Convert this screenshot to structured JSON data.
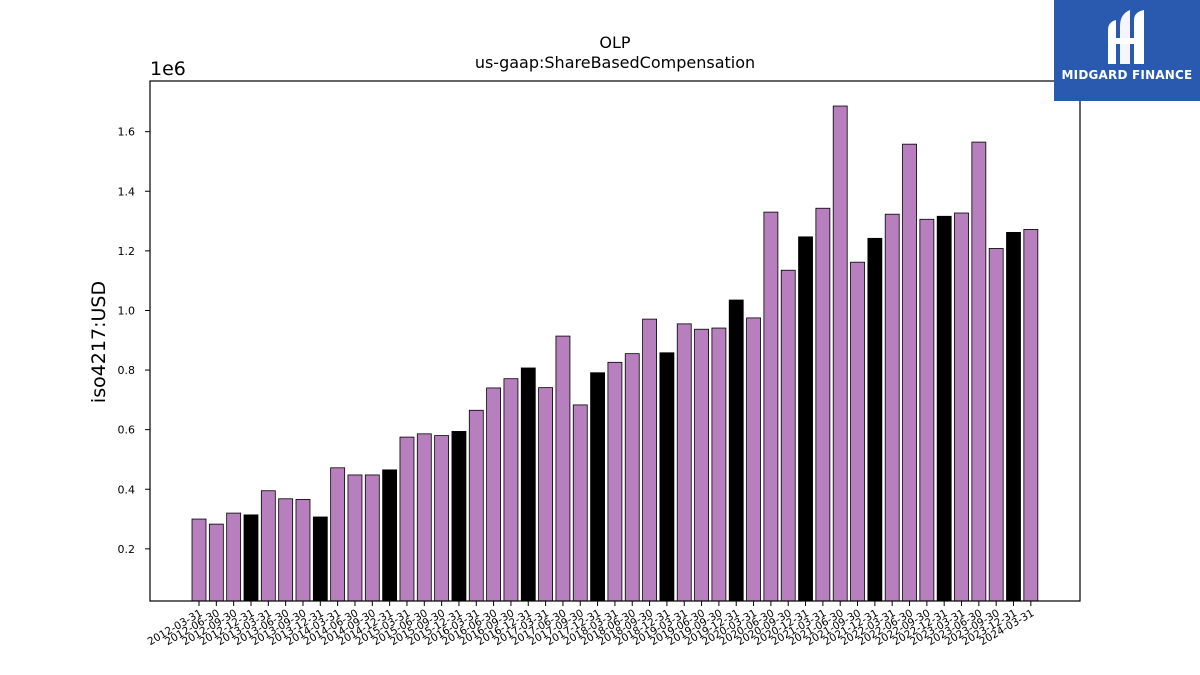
{
  "brand": {
    "name": "MIDGARD FINANCE",
    "icon": "midgard-m-logo-icon",
    "bg_color": "#2a5ab0"
  },
  "chart_data": {
    "type": "bar",
    "title": "OLP",
    "subtitle": "us-gaap:ShareBasedCompensation",
    "ylabel": "iso4217:USD",
    "xlabel": "",
    "y_scale_label": "1e6",
    "ylim": [
      25000,
      1770000
    ],
    "yticks": [
      0.2,
      0.4,
      0.6,
      0.8,
      1.0,
      1.2,
      1.4,
      1.6
    ],
    "grid": false,
    "colors": {
      "quarter": "#b77fbd",
      "year_end": "#000000"
    },
    "categories": [
      "2012-03-31",
      "2012-06-30",
      "2012-09-30",
      "2012-12-31",
      "2013-03-31",
      "2013-06-30",
      "2013-09-30",
      "2013-12-31",
      "2014-03-31",
      "2014-06-30",
      "2014-09-30",
      "2014-12-31",
      "2015-03-31",
      "2015-06-30",
      "2015-09-30",
      "2015-12-31",
      "2016-03-31",
      "2016-06-30",
      "2016-09-30",
      "2016-12-31",
      "2017-03-31",
      "2017-06-30",
      "2017-09-30",
      "2017-12-31",
      "2018-03-31",
      "2018-06-30",
      "2018-09-30",
      "2018-12-31",
      "2019-03-31",
      "2019-06-30",
      "2019-09-30",
      "2019-12-31",
      "2020-03-31",
      "2020-06-30",
      "2020-09-30",
      "2020-12-31",
      "2021-03-31",
      "2021-06-30",
      "2021-09-30",
      "2021-12-31",
      "2022-03-31",
      "2022-06-30",
      "2022-09-30",
      "2022-12-31",
      "2023-03-31",
      "2023-06-30",
      "2023-09-30",
      "2023-12-31",
      "2024-03-31"
    ],
    "values": [
      300000,
      283000,
      320000,
      314000,
      395000,
      368000,
      366000,
      307000,
      472000,
      448000,
      448000,
      465000,
      575000,
      586000,
      580000,
      594000,
      665000,
      740000,
      771000,
      807000,
      741000,
      914000,
      683000,
      791000,
      826000,
      855000,
      971000,
      858000,
      955000,
      937000,
      941000,
      1035000,
      975000,
      1330000,
      1135000,
      1247000,
      1343000,
      1686000,
      1162000,
      1242000,
      1323000,
      1558000,
      1306000,
      1316000,
      1327000,
      1565000,
      1208000,
      1262000,
      1272000
    ],
    "year_end_flags": [
      false,
      false,
      false,
      true,
      false,
      false,
      false,
      true,
      false,
      false,
      false,
      true,
      false,
      false,
      false,
      true,
      false,
      false,
      false,
      true,
      false,
      false,
      false,
      true,
      false,
      false,
      false,
      true,
      false,
      false,
      false,
      true,
      false,
      false,
      false,
      true,
      false,
      false,
      false,
      true,
      false,
      false,
      false,
      true,
      false,
      false,
      false,
      true,
      false
    ]
  }
}
